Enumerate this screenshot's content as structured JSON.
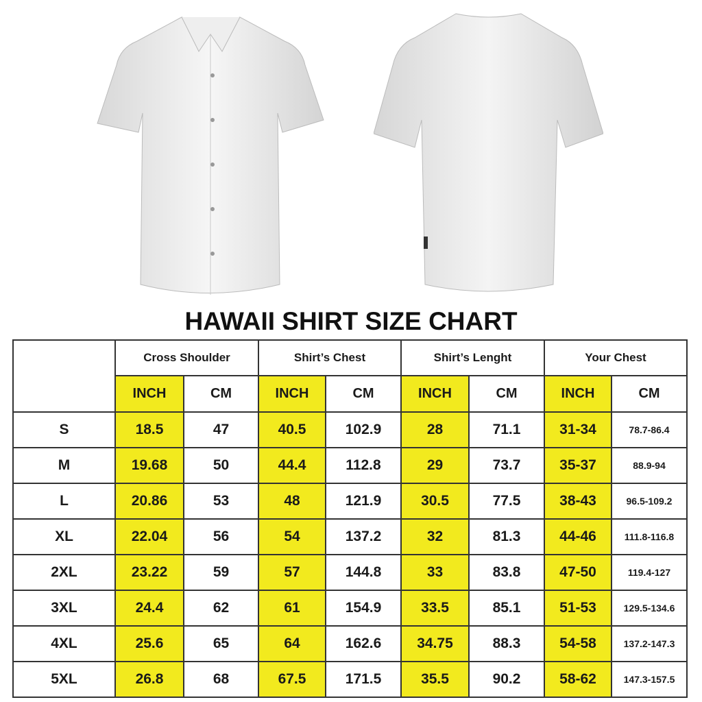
{
  "title": "HAWAII SHIRT SIZE CHART",
  "colors": {
    "highlight": "#f2ea1e",
    "border": "#333333"
  },
  "images": {
    "front": "shirt-front",
    "back": "shirt-back"
  },
  "groups": [
    "Cross Shoulder",
    "Shirt’s Chest",
    "Shirt’s Lenght",
    "Your Chest"
  ],
  "units": {
    "inch": "INCH",
    "cm": "CM"
  },
  "rows": [
    {
      "size": "S",
      "cells": [
        "18.5",
        "47",
        "40.5",
        "102.9",
        "28",
        "71.1",
        "31-34",
        "78.7-86.4"
      ]
    },
    {
      "size": "M",
      "cells": [
        "19.68",
        "50",
        "44.4",
        "112.8",
        "29",
        "73.7",
        "35-37",
        "88.9-94"
      ]
    },
    {
      "size": "L",
      "cells": [
        "20.86",
        "53",
        "48",
        "121.9",
        "30.5",
        "77.5",
        "38-43",
        "96.5-109.2"
      ]
    },
    {
      "size": "XL",
      "cells": [
        "22.04",
        "56",
        "54",
        "137.2",
        "32",
        "81.3",
        "44-46",
        "111.8-116.8"
      ]
    },
    {
      "size": "2XL",
      "cells": [
        "23.22",
        "59",
        "57",
        "144.8",
        "33",
        "83.8",
        "47-50",
        "119.4-127"
      ]
    },
    {
      "size": "3XL",
      "cells": [
        "24.4",
        "62",
        "61",
        "154.9",
        "33.5",
        "85.1",
        "51-53",
        "129.5-134.6"
      ]
    },
    {
      "size": "4XL",
      "cells": [
        "25.6",
        "65",
        "64",
        "162.6",
        "34.75",
        "88.3",
        "54-58",
        "137.2-147.3"
      ]
    },
    {
      "size": "5XL",
      "cells": [
        "26.8",
        "68",
        "67.5",
        "171.5",
        "35.5",
        "90.2",
        "58-62",
        "147.3-157.5"
      ]
    }
  ]
}
